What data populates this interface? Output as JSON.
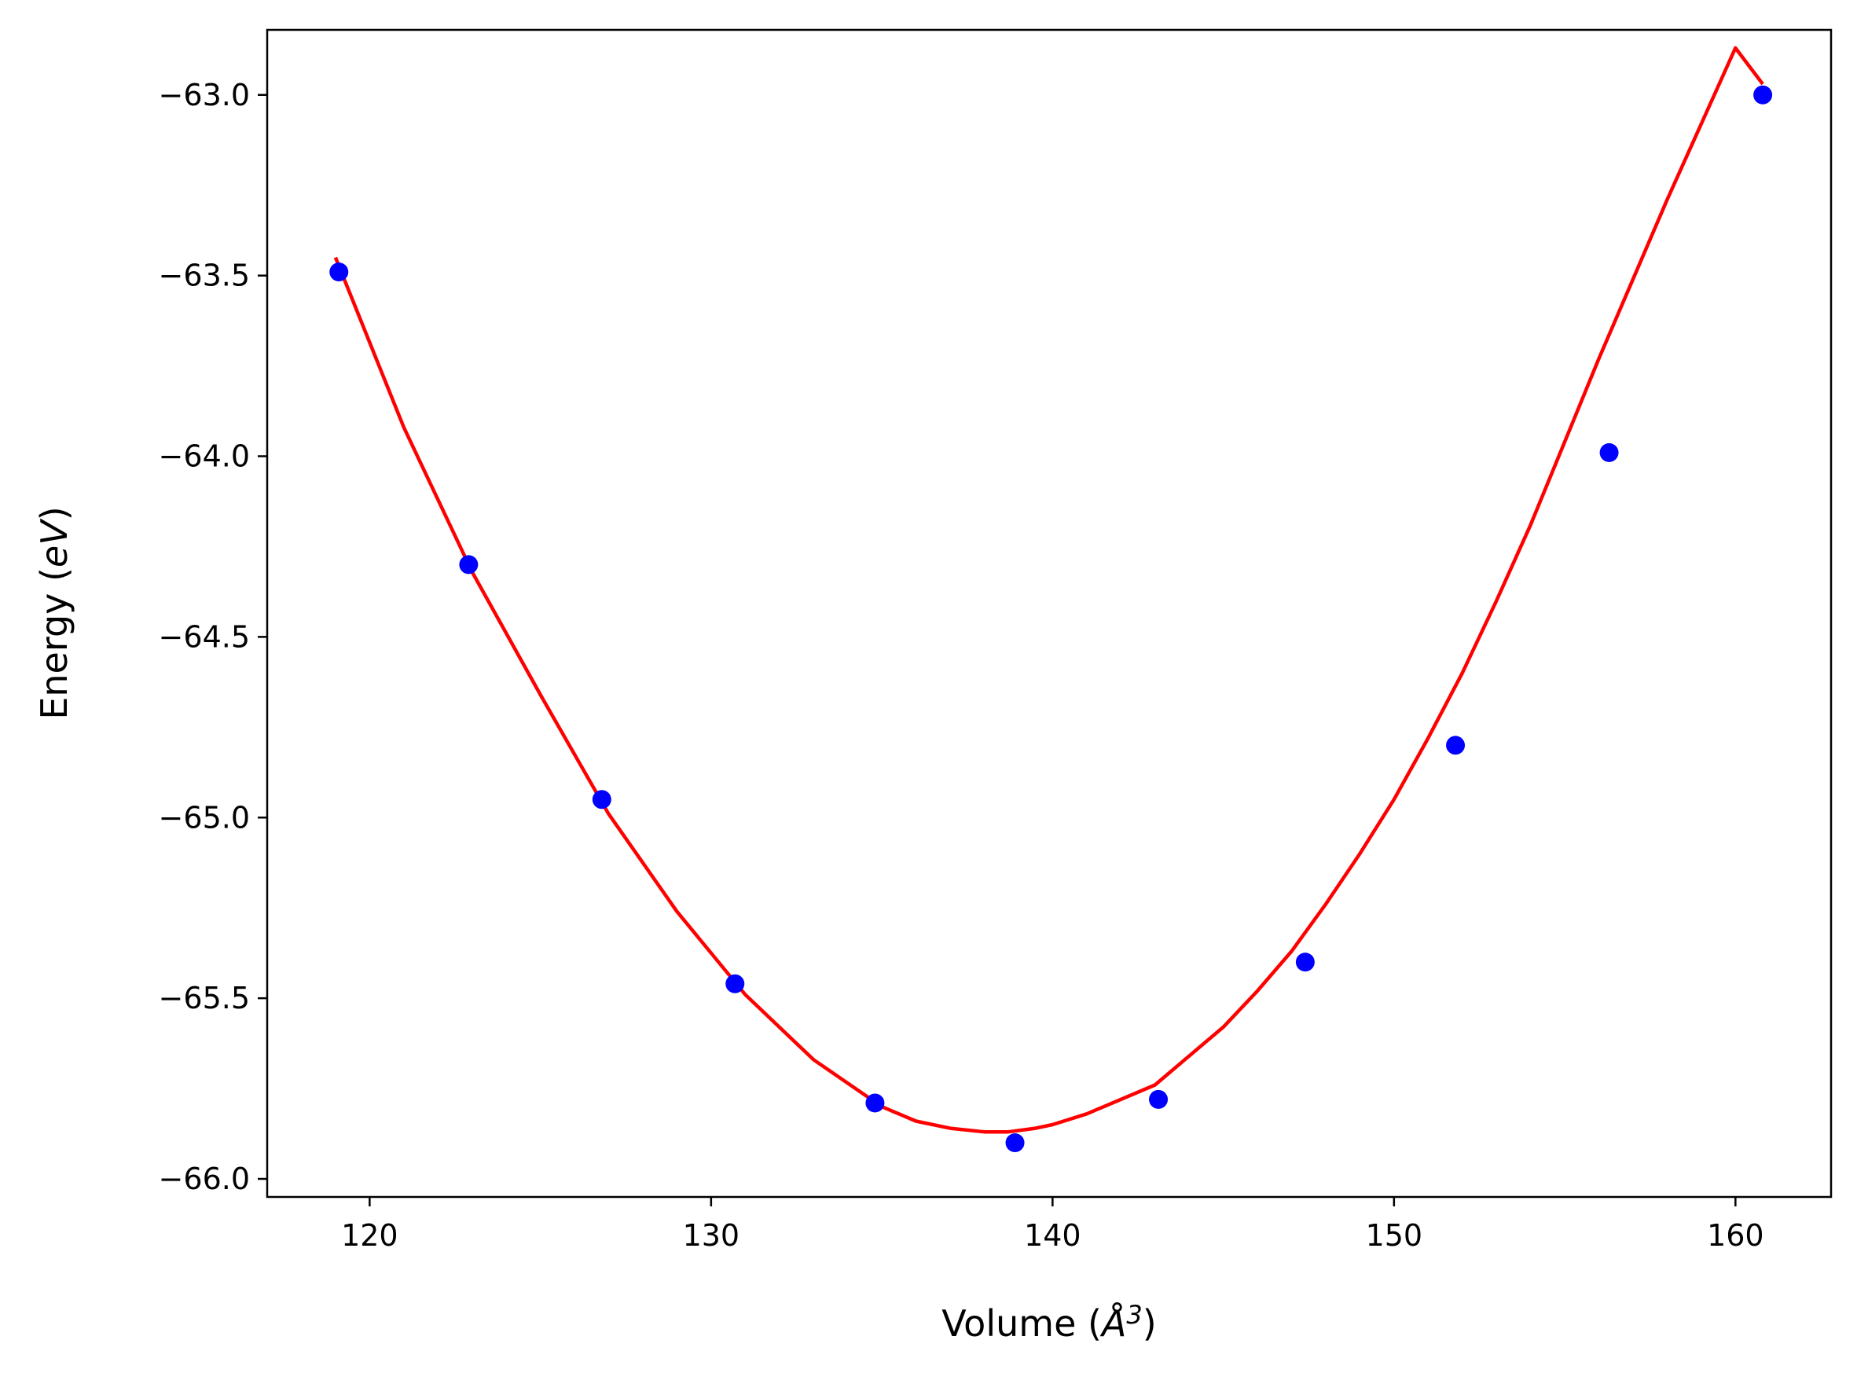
{
  "chart_data": {
    "type": "scatter",
    "title": "",
    "xlabel": {
      "prefix": "Volume (",
      "symbol": "Å",
      "exponent": "3",
      "suffix": ")"
    },
    "ylabel": {
      "prefix": "Energy (",
      "symbol": "eV",
      "suffix": ")"
    },
    "xlim": [
      117.0,
      162.8
    ],
    "ylim": [
      -66.05,
      -62.82
    ],
    "x_ticks": [
      120,
      130,
      140,
      150,
      160
    ],
    "x_tick_labels": [
      "120",
      "130",
      "140",
      "150",
      "160"
    ],
    "y_ticks": [
      -63.0,
      -63.5,
      -64.0,
      -64.5,
      -65.0,
      -65.5,
      -66.0
    ],
    "y_tick_labels": [
      "−63.0",
      "−63.5",
      "−64.0",
      "−64.5",
      "−65.0",
      "−65.5",
      "−66.0"
    ],
    "grid": false,
    "series": [
      {
        "kind": "points",
        "color": "#0000ff",
        "x": [
          119.1,
          122.9,
          126.8,
          130.7,
          134.8,
          138.9,
          143.1,
          147.4,
          151.8,
          156.3,
          160.8
        ],
        "y": [
          -63.49,
          -64.3,
          -64.95,
          -65.46,
          -65.79,
          -65.9,
          -65.78,
          -65.4,
          -64.8,
          -63.99,
          -63.0
        ]
      },
      {
        "kind": "fit",
        "color": "#ff0000",
        "x": [
          119.0,
          121.0,
          123.0,
          125.0,
          127.0,
          129.0,
          131.0,
          133.0,
          135.0,
          136.0,
          137.0,
          138.0,
          138.7,
          139.5,
          140.0,
          141.0,
          142.0,
          143.0,
          144.0,
          145.0,
          146.0,
          147.0,
          148.0,
          149.0,
          150.0,
          151.0,
          152.0,
          153.0,
          154.0,
          155.0,
          156.0,
          157.0,
          158.0,
          159.0,
          160.0,
          160.8
        ],
        "y": [
          -63.45,
          -63.92,
          -64.32,
          -64.66,
          -64.99,
          -65.26,
          -65.49,
          -65.67,
          -65.8,
          -65.84,
          -65.86,
          -65.87,
          -65.87,
          -65.86,
          -65.85,
          -65.82,
          -65.78,
          -65.74,
          -65.66,
          -65.58,
          -65.48,
          -65.37,
          -65.24,
          -65.1,
          -64.95,
          -64.78,
          -64.6,
          -64.4,
          -64.19,
          -63.96,
          -63.73,
          -63.51,
          -63.29,
          -63.08,
          -62.87,
          -62.97
        ]
      }
    ]
  }
}
